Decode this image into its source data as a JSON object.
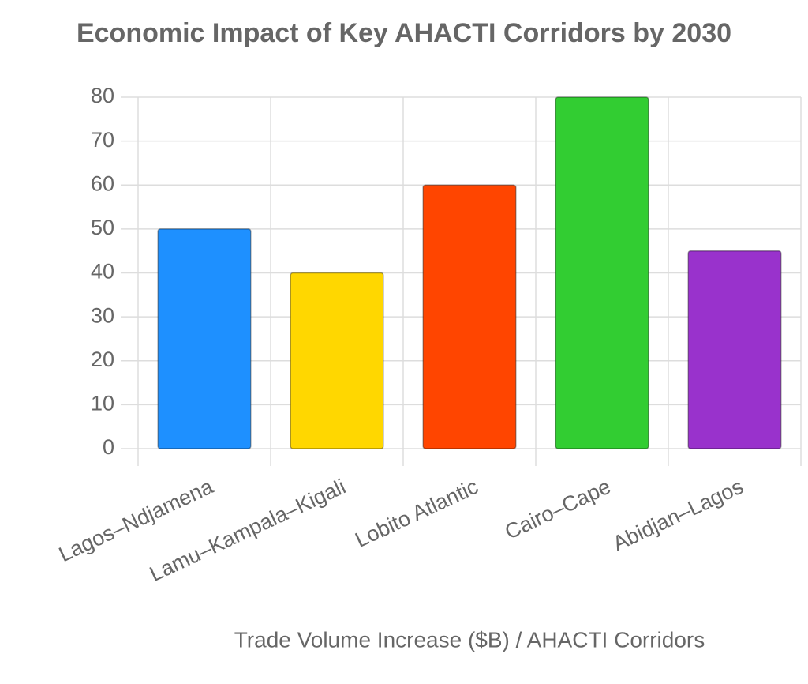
{
  "chart_data": {
    "type": "bar",
    "title": "Economic Impact of Key AHACTI Corridors by 2030",
    "x_label": "Trade Volume Increase ($B) / AHACTI Corridors",
    "categories": [
      "Lagos–Ndjamena",
      "Lamu–Kampala–Kigali",
      "Lobito Atlantic",
      "Cairo–Cape",
      "Abidjan–Lagos"
    ],
    "values": [
      50,
      40,
      60,
      80,
      45
    ],
    "colors": [
      "#1e90ff",
      "#ffd700",
      "#ff4500",
      "#32cd32",
      "#9932cc"
    ],
    "ylim": [
      0,
      80
    ],
    "yticks": [
      0,
      10,
      20,
      30,
      40,
      50,
      60,
      70,
      80
    ],
    "grid": true
  }
}
